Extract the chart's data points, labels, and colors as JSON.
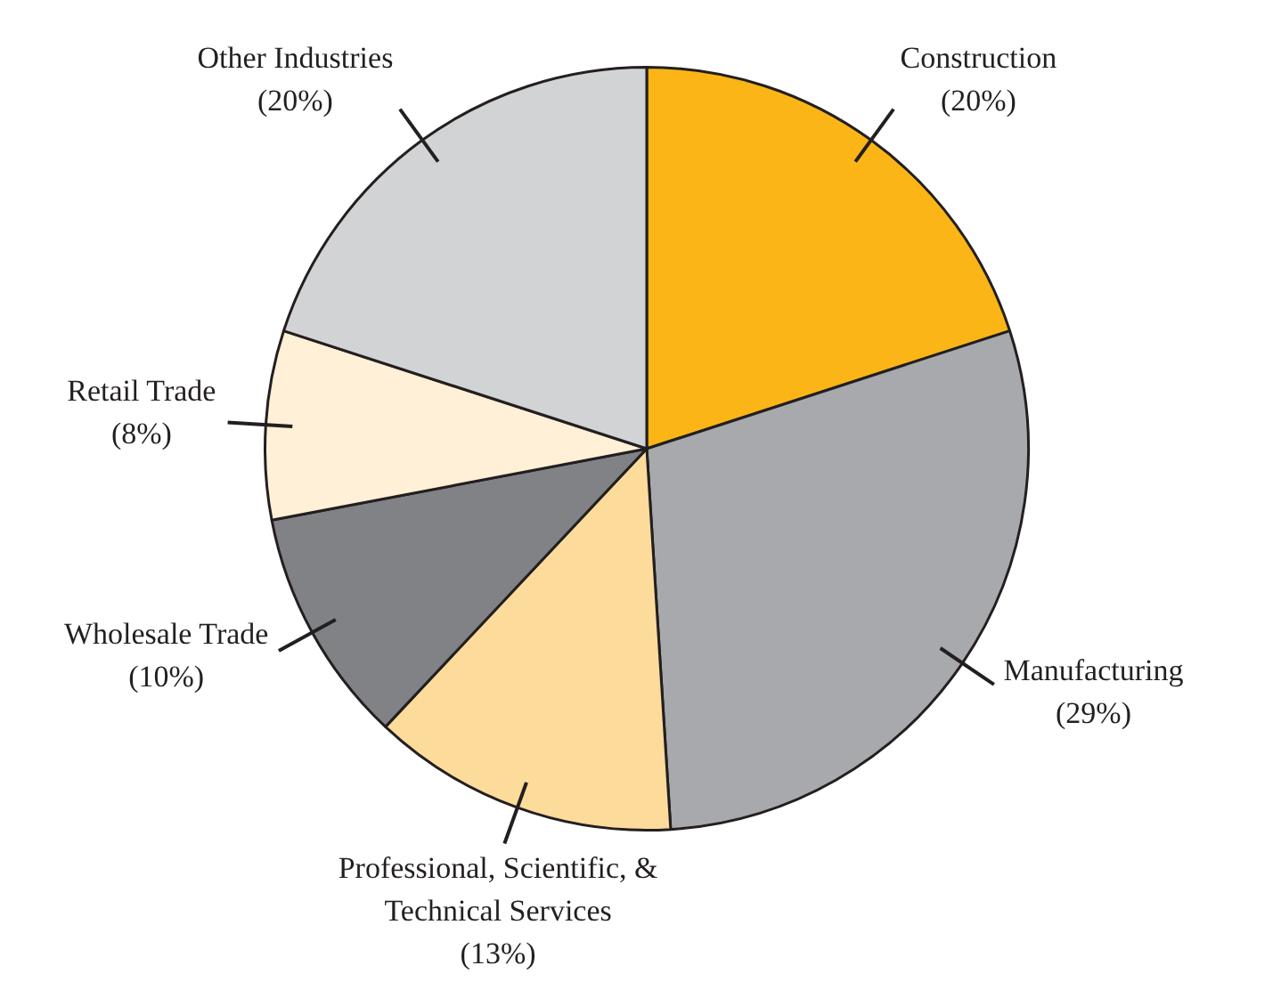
{
  "chart_data": {
    "type": "pie",
    "categories": [
      "Construction",
      "Manufacturing",
      "Professional, Scientific, & Technical Services",
      "Wholesale Trade",
      "Retail Trade",
      "Other Industries"
    ],
    "values": [
      20,
      29,
      13,
      10,
      8,
      20
    ],
    "colors": [
      "#fbb516",
      "#a7a9ac",
      "#fddb9b",
      "#808285",
      "#fff0d7",
      "#d1d3d4"
    ],
    "value_labels": [
      "(20%)",
      "(29%)",
      "(13%)",
      "(10%)",
      "(8%)",
      "(20%)"
    ],
    "legend": false
  }
}
